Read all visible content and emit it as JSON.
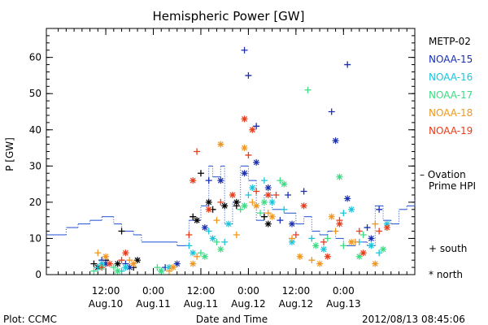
{
  "chart_data": {
    "type": "scatter",
    "title": "Hemispheric Power [GW]",
    "ylabel": "P [GW]",
    "xlabel": "Date and Time",
    "footer_left": "Plot: CCMC",
    "footer_right": "2012/08/13 08:45:06",
    "ylim": [
      0,
      68
    ],
    "yticks": [
      0,
      10,
      20,
      30,
      40,
      50,
      60
    ],
    "xlim_hours": [
      -15,
      78
    ],
    "xticks": [
      {
        "h": 0,
        "time": "12:00",
        "date": "Aug.10"
      },
      {
        "h": 12,
        "time": "0:00",
        "date": "Aug.11"
      },
      {
        "h": 24,
        "time": "12:00",
        "date": "Aug.11"
      },
      {
        "h": 36,
        "time": "0:00",
        "date": "Aug.12"
      },
      {
        "h": 48,
        "time": "12:00",
        "date": "Aug.12"
      },
      {
        "h": 60,
        "time": "0:00",
        "date": "Aug.13"
      }
    ],
    "marker_legend": {
      "south": "+ south",
      "north": "* north"
    },
    "ovation_label": [
      "– Ovation",
      "Prime HPI"
    ],
    "ovation_color": "#1f4fd0",
    "series": [
      {
        "name": "METP-02",
        "color": "#000000",
        "south": [
          [
            -3,
            3
          ],
          [
            0,
            4
          ],
          [
            4,
            12
          ],
          [
            7,
            2
          ],
          [
            22,
            16
          ],
          [
            24,
            28
          ],
          [
            27,
            18
          ],
          [
            33,
            19
          ],
          [
            40,
            16
          ]
        ],
        "north": [
          [
            -2,
            2
          ],
          [
            3,
            3
          ],
          [
            8,
            4
          ],
          [
            23,
            15
          ],
          [
            26,
            20
          ],
          [
            30,
            19
          ],
          [
            33,
            20
          ],
          [
            41,
            14
          ]
        ]
      },
      {
        "name": "NOAA-15",
        "color": "#1a2fb0",
        "south": [
          [
            -1,
            4
          ],
          [
            5,
            3
          ],
          [
            15,
            2
          ],
          [
            26,
            26
          ],
          [
            35,
            62
          ],
          [
            36,
            55
          ],
          [
            38,
            41
          ],
          [
            44,
            15
          ],
          [
            46,
            22
          ],
          [
            50,
            23
          ],
          [
            57,
            45
          ],
          [
            61,
            58
          ],
          [
            66,
            13
          ],
          [
            69,
            18
          ]
        ],
        "north": [
          [
            0,
            3
          ],
          [
            6,
            2
          ],
          [
            18,
            3
          ],
          [
            25,
            13
          ],
          [
            29,
            26
          ],
          [
            35,
            28
          ],
          [
            38,
            31
          ],
          [
            41,
            24
          ],
          [
            47,
            14
          ],
          [
            58,
            37
          ],
          [
            61,
            21
          ],
          [
            67,
            10
          ]
        ]
      },
      {
        "name": "NOAA-16",
        "color": "#19c5dc",
        "south": [
          [
            -2,
            2
          ],
          [
            4,
            1
          ],
          [
            14,
            1
          ],
          [
            21,
            8
          ],
          [
            26,
            12
          ],
          [
            30,
            9
          ],
          [
            36,
            22
          ],
          [
            40,
            26
          ],
          [
            45,
            18
          ],
          [
            52,
            10
          ],
          [
            60,
            17
          ],
          [
            64,
            9
          ],
          [
            69,
            6
          ]
        ],
        "north": [
          [
            -1,
            3
          ],
          [
            5,
            2
          ],
          [
            16,
            2
          ],
          [
            22,
            6
          ],
          [
            27,
            10
          ],
          [
            31,
            14
          ],
          [
            37,
            24
          ],
          [
            42,
            20
          ],
          [
            47,
            9
          ],
          [
            55,
            7
          ],
          [
            62,
            18
          ],
          [
            67,
            8
          ],
          [
            71,
            14
          ]
        ]
      },
      {
        "name": "NOAA-17",
        "color": "#3ddc84",
        "south": [
          [
            -3,
            1
          ],
          [
            2,
            2
          ],
          [
            13,
            2
          ],
          [
            24,
            6
          ],
          [
            28,
            9
          ],
          [
            34,
            18
          ],
          [
            39,
            17
          ],
          [
            44,
            26
          ],
          [
            51,
            51
          ],
          [
            56,
            10
          ],
          [
            60,
            8
          ],
          [
            65,
            11
          ]
        ],
        "north": [
          [
            -1,
            2
          ],
          [
            3,
            1
          ],
          [
            14,
            1
          ],
          [
            25,
            5
          ],
          [
            29,
            7
          ],
          [
            35,
            19
          ],
          [
            40,
            20
          ],
          [
            45,
            25
          ],
          [
            53,
            8
          ],
          [
            59,
            27
          ],
          [
            64,
            5
          ],
          [
            70,
            7
          ]
        ]
      },
      {
        "name": "NOAA-18",
        "color": "#f0961e",
        "south": [
          [
            -2,
            6
          ],
          [
            6,
            4
          ],
          [
            16,
            1
          ],
          [
            23,
            5
          ],
          [
            28,
            15
          ],
          [
            33,
            11
          ],
          [
            37,
            20
          ],
          [
            41,
            17
          ],
          [
            47,
            10
          ],
          [
            52,
            4
          ],
          [
            58,
            12
          ],
          [
            63,
            9
          ],
          [
            68,
            14
          ]
        ],
        "north": [
          [
            0,
            5
          ],
          [
            7,
            3
          ],
          [
            17,
            2
          ],
          [
            22,
            3
          ],
          [
            29,
            36
          ],
          [
            35,
            35
          ],
          [
            38,
            19
          ],
          [
            42,
            16
          ],
          [
            49,
            5
          ],
          [
            54,
            3
          ],
          [
            57,
            16
          ],
          [
            62,
            9
          ],
          [
            68,
            3
          ]
        ]
      },
      {
        "name": "NOAA-19",
        "color": "#e83c1a",
        "south": [
          [
            -1,
            2
          ],
          [
            4,
            4
          ],
          [
            21,
            11
          ],
          [
            23,
            34
          ],
          [
            29,
            20
          ],
          [
            36,
            33
          ],
          [
            38,
            23
          ],
          [
            43,
            22
          ],
          [
            48,
            11
          ],
          [
            55,
            9
          ],
          [
            59,
            15
          ],
          [
            64,
            12
          ],
          [
            69,
            12
          ]
        ],
        "north": [
          [
            1,
            3
          ],
          [
            5,
            6
          ],
          [
            22,
            26
          ],
          [
            26,
            18
          ],
          [
            32,
            22
          ],
          [
            35,
            43
          ],
          [
            37,
            40
          ],
          [
            41,
            22
          ],
          [
            50,
            19
          ],
          [
            56,
            5
          ],
          [
            59,
            14
          ],
          [
            65,
            6
          ],
          [
            71,
            13
          ]
        ]
      }
    ],
    "ovation_step": [
      [
        -15,
        11
      ],
      [
        -10,
        13
      ],
      [
        -7,
        14
      ],
      [
        -4,
        15
      ],
      [
        -1,
        16
      ],
      [
        2,
        14
      ],
      [
        4,
        12
      ],
      [
        7,
        11
      ],
      [
        9,
        9
      ],
      [
        16,
        9
      ],
      [
        18,
        8
      ],
      [
        21,
        15
      ],
      [
        24,
        19
      ],
      [
        26,
        30
      ],
      [
        27,
        27
      ],
      [
        29,
        30
      ],
      [
        30,
        14
      ],
      [
        32,
        20
      ],
      [
        34,
        30
      ],
      [
        36,
        26
      ],
      [
        38,
        15
      ],
      [
        40,
        22
      ],
      [
        42,
        18
      ],
      [
        45,
        17
      ],
      [
        48,
        14
      ],
      [
        50,
        16
      ],
      [
        52,
        12
      ],
      [
        54,
        11
      ],
      [
        56,
        12
      ],
      [
        58,
        10
      ],
      [
        60,
        8
      ],
      [
        63,
        9
      ],
      [
        66,
        8
      ],
      [
        68,
        19
      ],
      [
        70,
        15
      ],
      [
        72,
        14
      ],
      [
        74,
        18
      ],
      [
        76,
        19
      ],
      [
        78,
        21
      ]
    ]
  }
}
